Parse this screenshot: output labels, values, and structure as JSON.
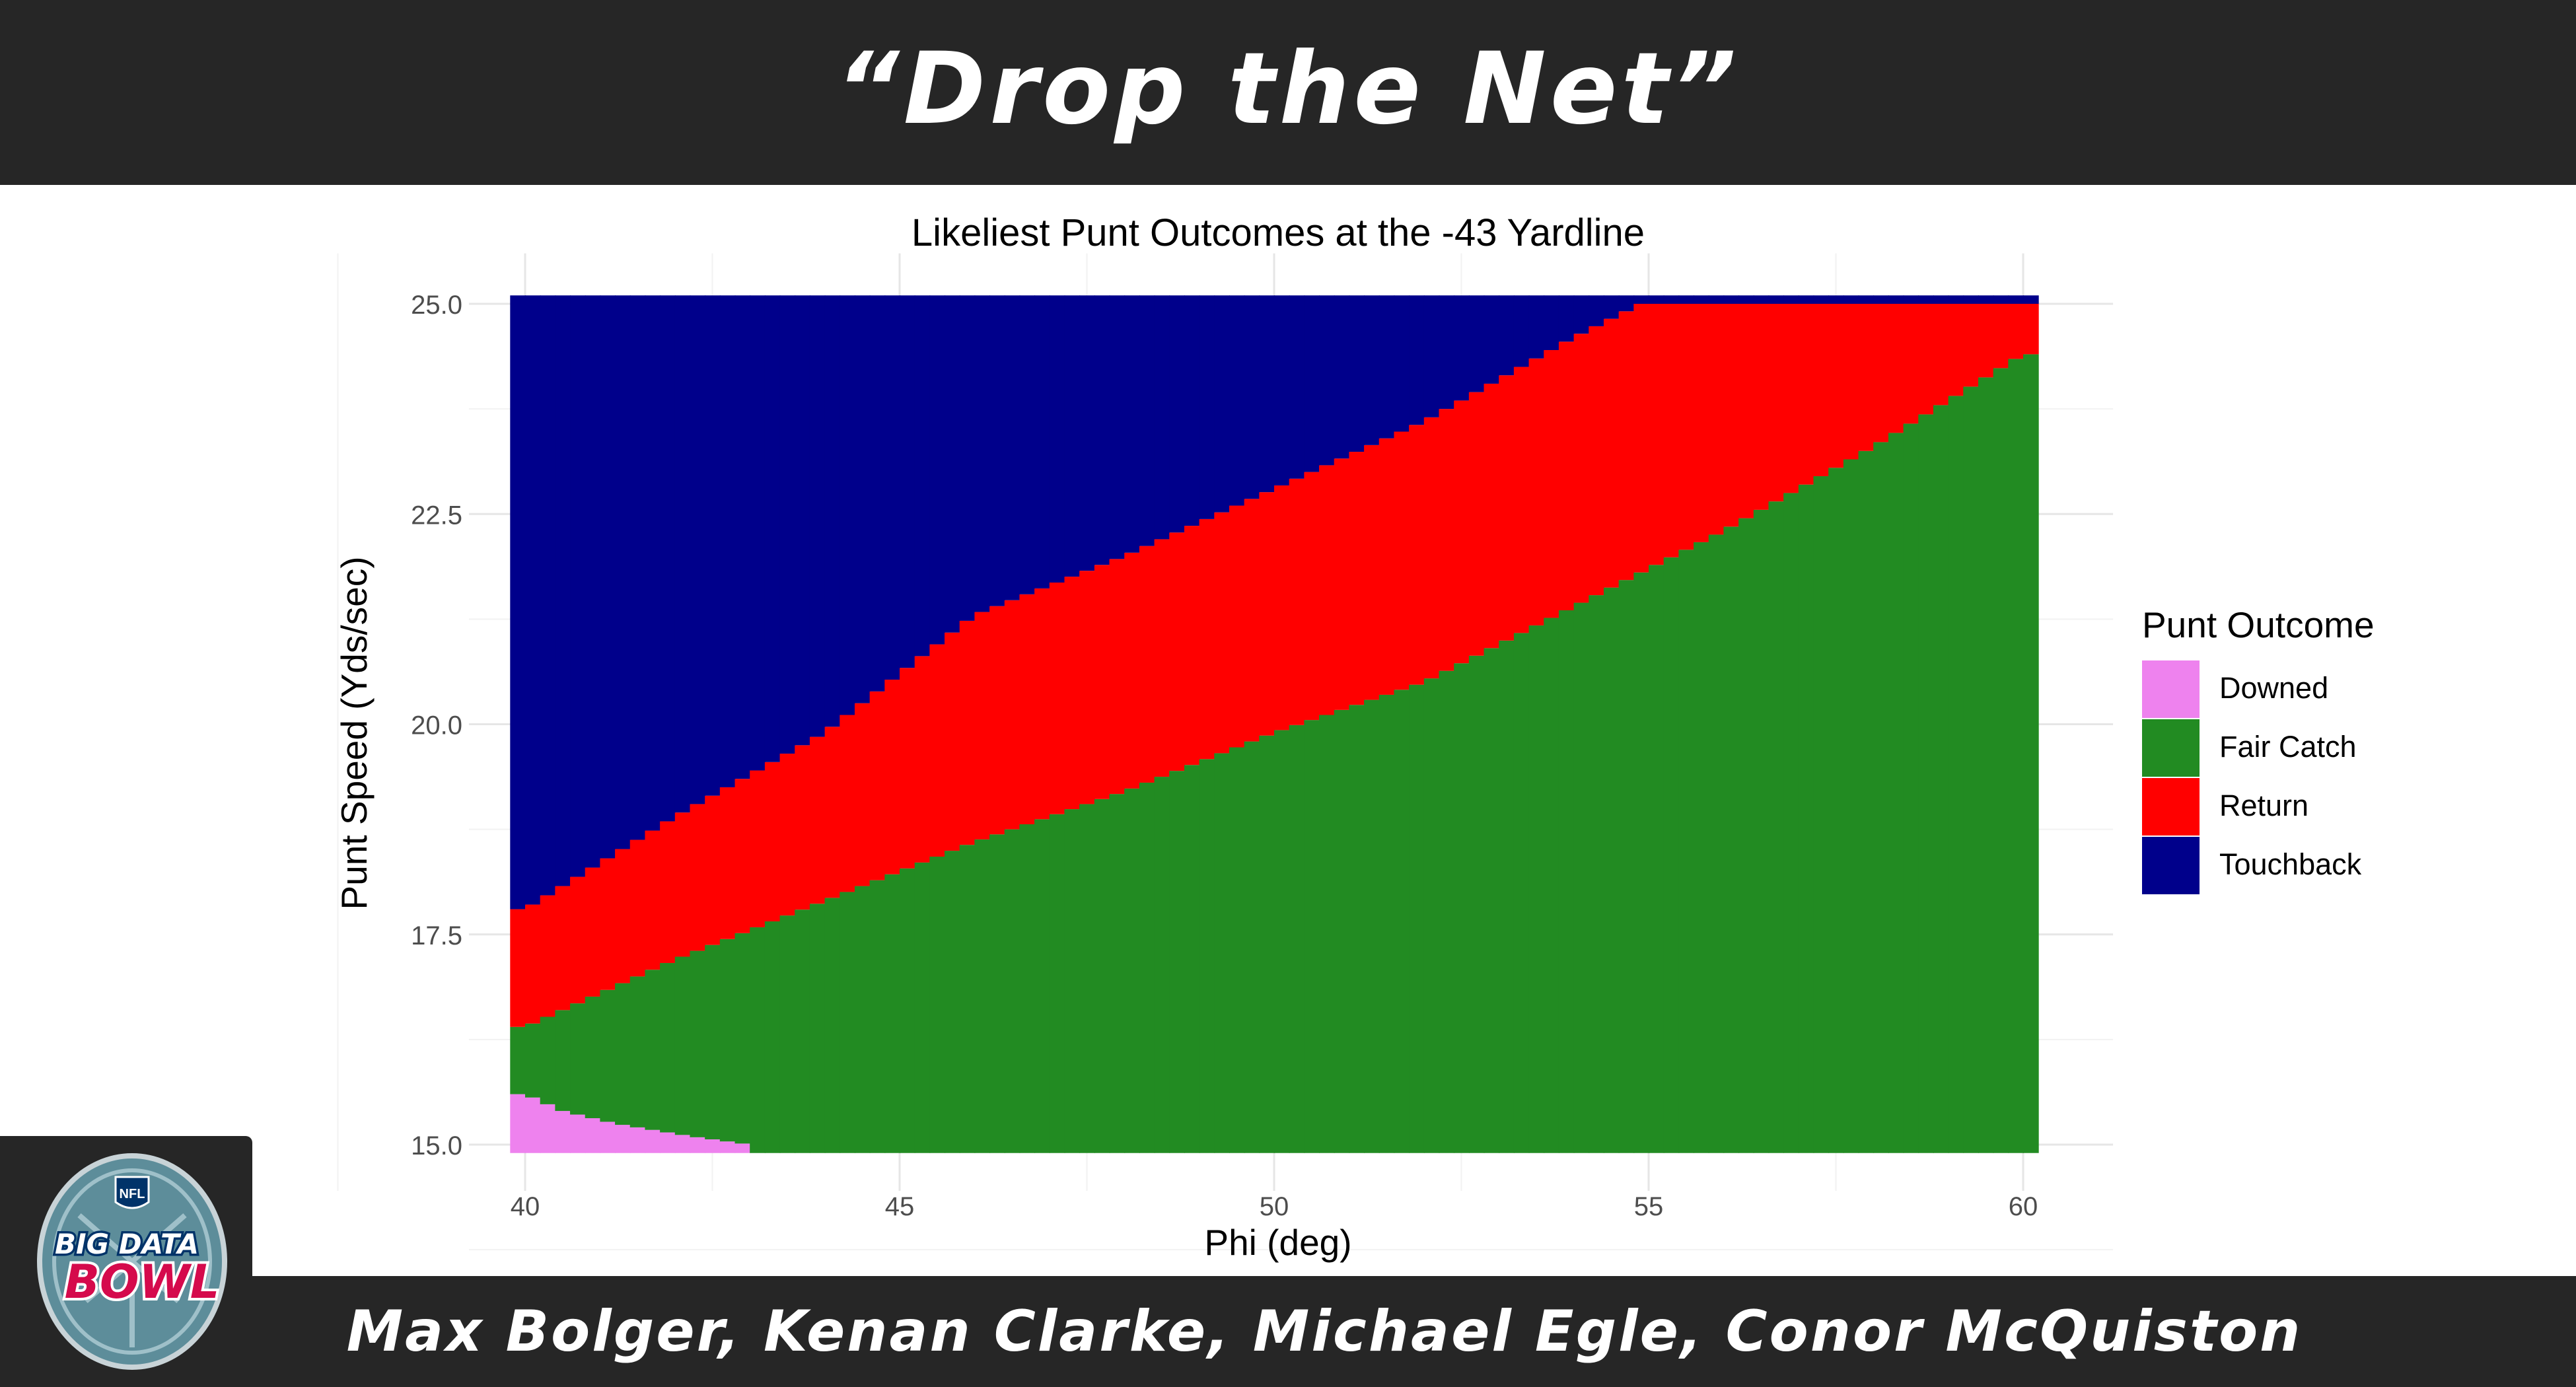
{
  "banner": {
    "title": "“Drop the Net”",
    "authors": "Max Bolger, Kenan Clarke, Michael Egle, Conor McQuiston"
  },
  "logo": {
    "shield_text": "NFL",
    "line1": "BIG DATA",
    "line2": "BOWL"
  },
  "chart_data": {
    "type": "heatmap",
    "title": "Likeliest Punt Outcomes at the -43 Yardline",
    "xlabel": "Phi (deg)",
    "ylabel": "Punt Speed (Yds/sec)",
    "xlim": [
      40,
      60
    ],
    "ylim": [
      15,
      25
    ],
    "xticks": [
      "40",
      "45",
      "50",
      "55",
      "60"
    ],
    "yticks": [
      "15.0",
      "17.5",
      "20.0",
      "22.5",
      "25.0"
    ],
    "grid": true,
    "legend": {
      "title": "Punt Outcome",
      "placement": "right",
      "entries": [
        {
          "name": "Downed",
          "color": "#ee82ee"
        },
        {
          "name": "Fair Catch",
          "color": "#228b22"
        },
        {
          "name": "Return",
          "color": "#ff0000"
        },
        {
          "name": "Touchback",
          "color": "#00008b"
        }
      ]
    },
    "boundaries": {
      "downed_fair_catch": [
        [
          40,
          15.6
        ],
        [
          40.5,
          15.4
        ],
        [
          41.2,
          15.25
        ],
        [
          42.2,
          15.1
        ],
        [
          43,
          15.0
        ]
      ],
      "fair_catch_return": [
        [
          40,
          16.4
        ],
        [
          42,
          17.2
        ],
        [
          44,
          17.9
        ],
        [
          46,
          18.6
        ],
        [
          48,
          19.2
        ],
        [
          50,
          19.9
        ],
        [
          52,
          20.5
        ],
        [
          54,
          21.4
        ],
        [
          56,
          22.3
        ],
        [
          58,
          23.3
        ],
        [
          60,
          24.4
        ]
      ],
      "return_touchback": [
        [
          40,
          17.8
        ],
        [
          42,
          18.9
        ],
        [
          44,
          19.9
        ],
        [
          46,
          21.3
        ],
        [
          48,
          22.0
        ],
        [
          50,
          22.8
        ],
        [
          52,
          23.6
        ],
        [
          54,
          24.6
        ],
        [
          54.9,
          25.0
        ]
      ]
    }
  }
}
